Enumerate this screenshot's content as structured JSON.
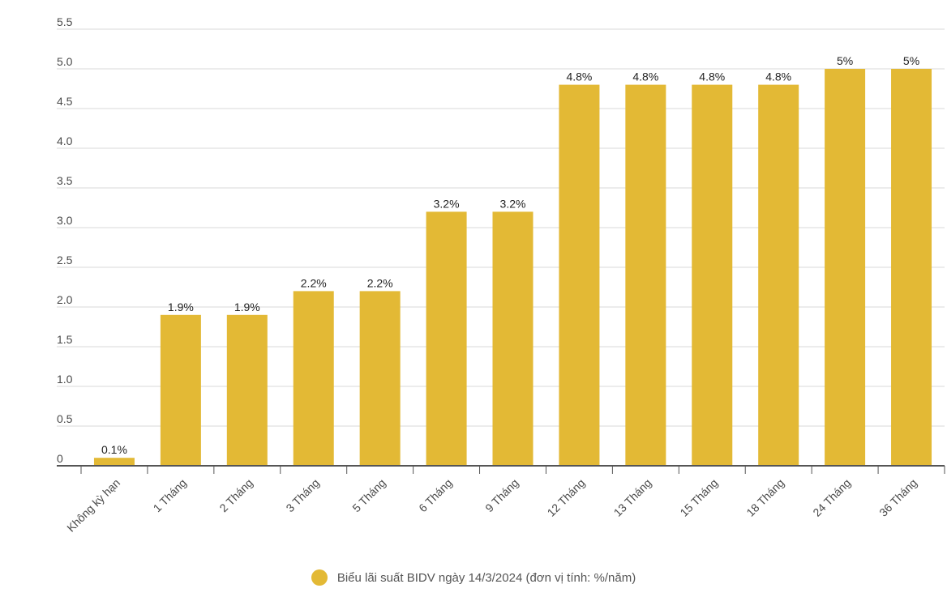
{
  "chart_data": {
    "type": "bar",
    "categories": [
      "Không kỳ hạn",
      "1 Tháng",
      "2 Tháng",
      "3 Tháng",
      "5 Tháng",
      "6 Tháng",
      "9 Tháng",
      "12 Tháng",
      "13 Tháng",
      "15 Tháng",
      "18 Tháng",
      "24 Tháng",
      "36 Tháng"
    ],
    "series": [
      {
        "name": "Biểu lãi suất BIDV ngày 14/3/2024 (đơn vị tính: %/năm)",
        "values": [
          0.1,
          1.9,
          1.9,
          2.2,
          2.2,
          3.2,
          3.2,
          4.8,
          4.8,
          4.8,
          4.8,
          5,
          5
        ],
        "data_labels": [
          "0.1%",
          "1.9%",
          "1.9%",
          "2.2%",
          "2.2%",
          "3.2%",
          "3.2%",
          "4.8%",
          "4.8%",
          "4.8%",
          "4.8%",
          "5%",
          "5%"
        ]
      }
    ],
    "yticks": [
      "0",
      "0.5",
      "1.0",
      "1.5",
      "2.0",
      "2.5",
      "3.0",
      "3.5",
      "4.0",
      "4.5",
      "5.0",
      "5.5"
    ],
    "ylim": [
      0,
      5.5
    ],
    "grid": true,
    "legend_position": "bottom-center",
    "colors": {
      "bar": "#e3b935",
      "grid": "#d9d9d9",
      "axis": "#555555"
    }
  }
}
